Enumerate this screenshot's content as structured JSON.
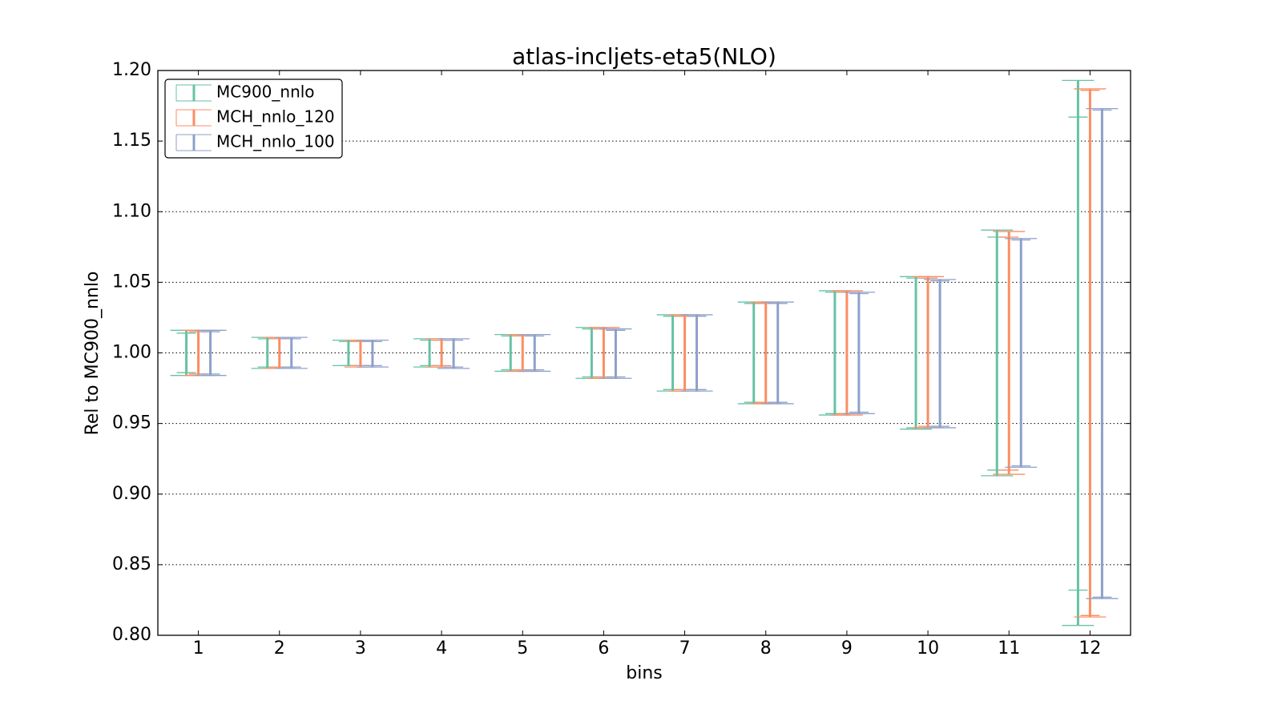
{
  "chart_data": {
    "type": "errorbar",
    "title": "atlas-incljets-eta5(NLO)",
    "x_label": "bins",
    "y_label": "Rel to MC900_nnlo",
    "categories": [
      "1",
      "2",
      "3",
      "4",
      "5",
      "6",
      "7",
      "8",
      "9",
      "10",
      "11",
      "12"
    ],
    "ylim": [
      0.8,
      1.2
    ],
    "yticks": [
      {
        "value": 0.8,
        "label": "0.80"
      },
      {
        "value": 0.85,
        "label": "0.85"
      },
      {
        "value": 0.9,
        "label": "0.90"
      },
      {
        "value": 0.95,
        "label": "0.95"
      },
      {
        "value": 1.0,
        "label": "1.00"
      },
      {
        "value": 1.05,
        "label": "1.05"
      },
      {
        "value": 1.1,
        "label": "1.10"
      },
      {
        "value": 1.15,
        "label": "1.15"
      },
      {
        "value": 1.2,
        "label": "1.20"
      }
    ],
    "grid": true,
    "legend": "upper left",
    "series": [
      {
        "name": "MC900_nnlo",
        "color": "#66c2a5",
        "upper": [
          1.016,
          1.011,
          1.009,
          1.01,
          1.013,
          1.018,
          1.027,
          1.036,
          1.044,
          1.054,
          1.087,
          1.193
        ],
        "lower": [
          0.984,
          0.989,
          0.991,
          0.99,
          0.987,
          0.982,
          0.973,
          0.964,
          0.956,
          0.946,
          0.913,
          0.807
        ],
        "upper_inner": [
          1.014,
          1.01,
          1.008,
          1.009,
          1.012,
          1.017,
          1.026,
          1.035,
          1.043,
          1.053,
          1.082,
          1.167
        ],
        "lower_inner": [
          0.986,
          0.99,
          0.991,
          0.991,
          0.988,
          0.983,
          0.974,
          0.965,
          0.957,
          0.947,
          0.917,
          0.832
        ]
      },
      {
        "name": "MCH_nnlo_120",
        "color": "#fc8d62",
        "upper": [
          1.016,
          1.011,
          1.009,
          1.01,
          1.013,
          1.018,
          1.027,
          1.036,
          1.044,
          1.054,
          1.086,
          1.187
        ],
        "lower": [
          0.984,
          0.989,
          0.99,
          0.99,
          0.987,
          0.982,
          0.973,
          0.964,
          0.956,
          0.947,
          0.914,
          0.813
        ],
        "upper_inner": [
          1.015,
          1.01,
          1.008,
          1.009,
          1.012,
          1.017,
          1.026,
          1.035,
          1.043,
          1.053,
          1.082,
          1.186
        ],
        "lower_inner": [
          0.985,
          0.99,
          0.991,
          0.991,
          0.988,
          0.983,
          0.974,
          0.965,
          0.957,
          0.948,
          0.917,
          0.814
        ]
      },
      {
        "name": "MCH_nnlo_100",
        "color": "#8da0cb",
        "upper": [
          1.016,
          1.011,
          1.009,
          1.01,
          1.013,
          1.017,
          1.027,
          1.036,
          1.043,
          1.052,
          1.081,
          1.173
        ],
        "lower": [
          0.984,
          0.989,
          0.99,
          0.989,
          0.987,
          0.982,
          0.973,
          0.964,
          0.957,
          0.947,
          0.919,
          0.826
        ],
        "upper_inner": [
          1.015,
          1.01,
          1.008,
          1.009,
          1.012,
          1.016,
          1.026,
          1.035,
          1.042,
          1.051,
          1.08,
          1.172
        ],
        "lower_inner": [
          0.985,
          0.99,
          0.991,
          0.99,
          0.988,
          0.983,
          0.974,
          0.965,
          0.958,
          0.948,
          0.92,
          0.827
        ]
      }
    ]
  }
}
